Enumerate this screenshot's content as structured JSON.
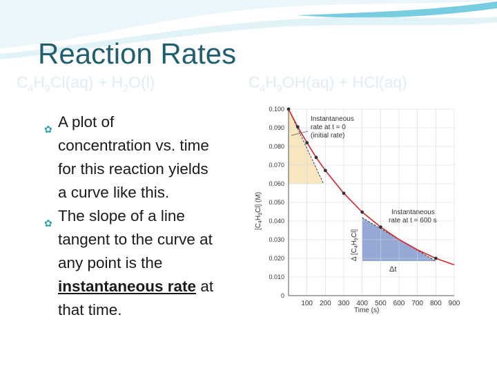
{
  "slide": {
    "title": "Reaction Rates",
    "equation_left": [
      "C",
      "4",
      "H",
      "9",
      "Cl(aq) + H",
      "2",
      "O(l)"
    ],
    "equation_right": [
      "C",
      "4",
      "H",
      "9",
      "OH(aq) + HCl(aq)"
    ],
    "bullets": [
      {
        "first_line": "A plot of",
        "rest": [
          "concentration vs. time",
          "for this reaction yields",
          "a curve like this."
        ]
      },
      {
        "first_line": "The slope of a line",
        "rest": [
          "tangent to the curve at",
          "any point is the"
        ],
        "emph": "instantaneous rate",
        "after_emph": " at",
        "last_line": "that time."
      }
    ],
    "colors": {
      "title": "#1f5f70",
      "bullet_mark": "#2a9db5",
      "curve": "#d9232a",
      "triangle_initial": "#f7e2b6",
      "triangle_600": "#8aa0cf"
    }
  },
  "chart_data": {
    "type": "line",
    "xlabel": "Time (s)",
    "ylabel_parts": [
      "[C",
      "4",
      "H",
      "9",
      "Cl] (M)"
    ],
    "x_ticks": [
      0,
      100,
      200,
      300,
      400,
      500,
      600,
      700,
      800,
      900
    ],
    "y_ticks": [
      "0",
      "0.010",
      "0.020",
      "0.030",
      "0.040",
      "0.050",
      "0.060",
      "0.070",
      "0.080",
      "0.090",
      "0.100"
    ],
    "xlim": [
      0,
      900
    ],
    "ylim": [
      0,
      0.1
    ],
    "grid": true,
    "series": [
      {
        "x": [
          0,
          50,
          100,
          150,
          200,
          300,
          400,
          500,
          600,
          700,
          800,
          900
        ],
        "y": [
          0.1,
          0.0905,
          0.082,
          0.0741,
          0.0671,
          0.0549,
          0.0448,
          0.0368,
          0.0301,
          0.0246,
          0.02,
          0.0165
        ]
      }
    ],
    "markers": [
      {
        "x": 0,
        "y": 0.1
      },
      {
        "x": 50,
        "y": 0.0905
      },
      {
        "x": 100,
        "y": 0.082
      },
      {
        "x": 150,
        "y": 0.0741
      },
      {
        "x": 200,
        "y": 0.0671
      },
      {
        "x": 300,
        "y": 0.0549
      },
      {
        "x": 400,
        "y": 0.0448
      },
      {
        "x": 500,
        "y": 0.0368
      },
      {
        "x": 800,
        "y": 0.02
      }
    ],
    "tangents": [
      {
        "from": [
          0,
          0.1
        ],
        "to": [
          190,
          0.06
        ]
      },
      {
        "from": [
          400,
          0.0418
        ],
        "to": [
          800,
          0.0185
        ]
      }
    ],
    "triangles": [
      {
        "points": [
          [
            0,
            0.1
          ],
          [
            0,
            0.06
          ],
          [
            190,
            0.06
          ]
        ],
        "fill": "#f7e2b6"
      },
      {
        "points": [
          [
            400,
            0.0418
          ],
          [
            400,
            0.0185
          ],
          [
            800,
            0.0185
          ]
        ],
        "fill": "#8aa0cf"
      }
    ],
    "annotations": {
      "instant0": [
        "Instantaneous",
        "rate at t = 0",
        "(initial rate)"
      ],
      "instant600": [
        "Instantaneous",
        "rate at t = 600 s"
      ],
      "delta_conc_parts": [
        "Δ [C",
        "4",
        "H",
        "9",
        "Cl]"
      ],
      "delta_t": "Δt"
    }
  }
}
